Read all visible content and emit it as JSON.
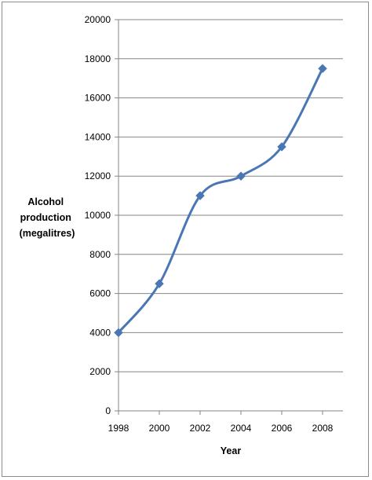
{
  "chart_data": {
    "type": "line",
    "title": "",
    "xlabel": "Year",
    "ylabel_lines": [
      "Alcohol",
      "production",
      "(megalitres)"
    ],
    "x": [
      1998,
      2000,
      2002,
      2004,
      2006,
      2008
    ],
    "series": [
      {
        "values": [
          4000,
          6500,
          11000,
          12000,
          13500,
          17500
        ],
        "color": "#4a77b4",
        "marker": "diamond",
        "smooth": true
      }
    ],
    "xlim": [
      1998,
      2008
    ],
    "ylim": [
      0,
      20000
    ],
    "yticks": [
      0,
      2000,
      4000,
      6000,
      8000,
      10000,
      12000,
      14000,
      16000,
      18000,
      20000
    ],
    "xticks": [
      "1998",
      "2000",
      "2002",
      "2004",
      "2006",
      "2008"
    ],
    "grid": "horizontal",
    "legend": "none",
    "colors": {
      "line": "#4a77b4",
      "grid": "#868686",
      "axis": "#868686"
    }
  }
}
